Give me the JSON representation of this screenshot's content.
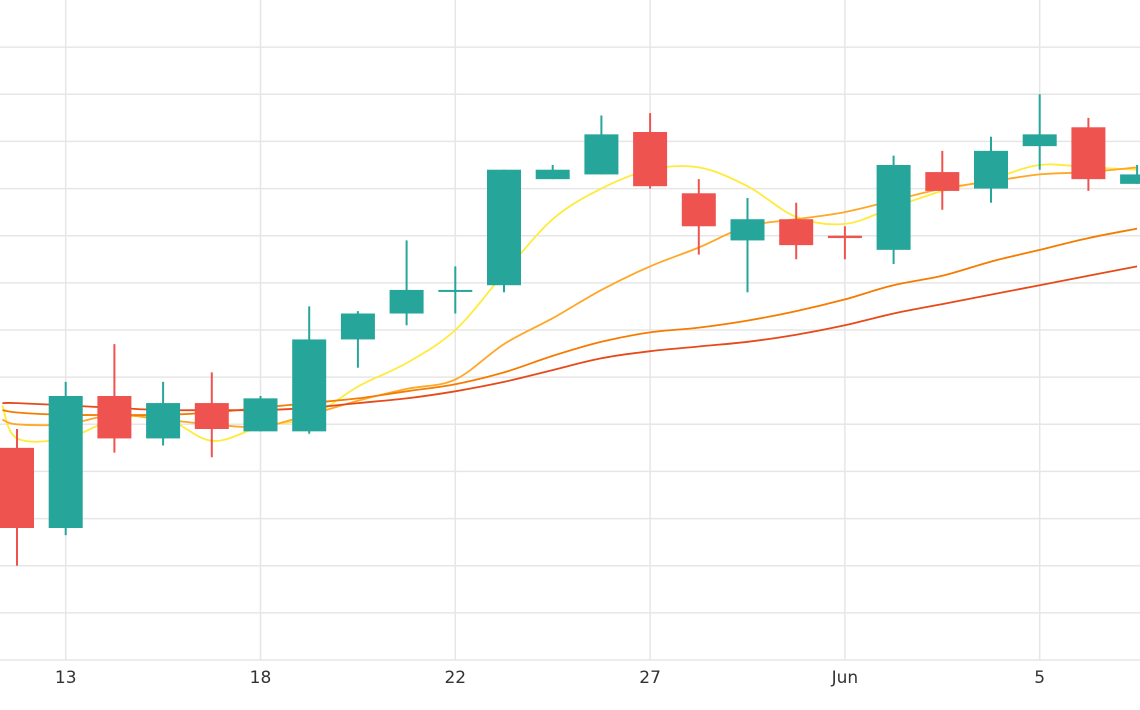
{
  "chart_data": {
    "type": "candlestick",
    "grid": true,
    "y_axis_labels_visible": false,
    "ylim": [
      0,
      14
    ],
    "x_ticks": [
      {
        "label": "13",
        "x": 1
      },
      {
        "label": "18",
        "x": 5
      },
      {
        "label": "22",
        "x": 9
      },
      {
        "label": "27",
        "x": 13
      },
      {
        "label": "Jun",
        "x": 17
      },
      {
        "label": "5",
        "x": 21
      }
    ],
    "y_gridlines": [
      1,
      2,
      3,
      4,
      5,
      6,
      7,
      8,
      9,
      10,
      11,
      12,
      13
    ],
    "colors": {
      "up": "#26a69a",
      "down": "#ef5350",
      "grid": "#e6e6e6",
      "ma_series": [
        "#ffeb3b",
        "#ffa726",
        "#f57c00",
        "#e64a19"
      ]
    },
    "candles": [
      {
        "x": 0,
        "open": 4.5,
        "high": 4.9,
        "low": 2.0,
        "close": 2.8
      },
      {
        "x": 1,
        "open": 2.8,
        "high": 5.9,
        "low": 2.65,
        "close": 5.6
      },
      {
        "x": 2,
        "open": 5.6,
        "high": 6.7,
        "low": 4.4,
        "close": 4.7
      },
      {
        "x": 3,
        "open": 4.7,
        "high": 5.9,
        "low": 4.55,
        "close": 5.45
      },
      {
        "x": 4,
        "open": 5.45,
        "high": 6.1,
        "low": 4.3,
        "close": 4.9
      },
      {
        "x": 5,
        "open": 4.85,
        "high": 5.6,
        "low": 4.85,
        "close": 5.55
      },
      {
        "x": 6,
        "open": 4.85,
        "high": 7.5,
        "low": 4.8,
        "close": 6.8
      },
      {
        "x": 7,
        "open": 6.8,
        "high": 7.4,
        "low": 6.2,
        "close": 7.35
      },
      {
        "x": 8,
        "open": 7.35,
        "high": 8.9,
        "low": 7.1,
        "close": 7.85
      },
      {
        "x": 9,
        "open": 7.85,
        "high": 8.35,
        "low": 7.35,
        "close": 7.85
      },
      {
        "x": 10,
        "open": 7.95,
        "high": 10.4,
        "low": 7.8,
        "close": 10.4
      },
      {
        "x": 11,
        "open": 10.2,
        "high": 10.5,
        "low": 10.2,
        "close": 10.4
      },
      {
        "x": 12,
        "open": 10.3,
        "high": 11.55,
        "low": 10.3,
        "close": 11.15
      },
      {
        "x": 13,
        "open": 11.2,
        "high": 11.6,
        "low": 10.0,
        "close": 10.05
      },
      {
        "x": 14,
        "open": 9.9,
        "high": 10.2,
        "low": 8.6,
        "close": 9.2
      },
      {
        "x": 15,
        "open": 8.9,
        "high": 9.8,
        "low": 7.8,
        "close": 9.35
      },
      {
        "x": 16,
        "open": 9.35,
        "high": 9.7,
        "low": 8.5,
        "close": 8.8
      },
      {
        "x": 17,
        "open": 9.0,
        "high": 9.2,
        "low": 8.5,
        "close": 8.95
      },
      {
        "x": 18,
        "open": 8.7,
        "high": 10.7,
        "low": 8.4,
        "close": 10.5
      },
      {
        "x": 19,
        "open": 10.35,
        "high": 10.8,
        "low": 9.55,
        "close": 9.95
      },
      {
        "x": 20,
        "open": 10.0,
        "high": 11.1,
        "low": 9.7,
        "close": 10.8
      },
      {
        "x": 21,
        "open": 10.9,
        "high": 12.0,
        "low": 10.4,
        "close": 11.15
      },
      {
        "x": 22,
        "open": 11.3,
        "high": 11.5,
        "low": 9.95,
        "close": 10.2
      },
      {
        "x": 23,
        "open": 10.1,
        "high": 10.5,
        "low": 10.1,
        "close": 10.3
      }
    ],
    "ma_series": [
      {
        "values": [
          [
            -0.3,
            5.4
          ],
          [
            0,
            4.7
          ],
          [
            1,
            4.7
          ],
          [
            2,
            5.1
          ],
          [
            3,
            5.15
          ],
          [
            4,
            4.65
          ],
          [
            5,
            4.95
          ],
          [
            6,
            5.15
          ],
          [
            7,
            5.8
          ],
          [
            8,
            6.3
          ],
          [
            9,
            7.0
          ],
          [
            10,
            8.2
          ],
          [
            11,
            9.35
          ],
          [
            12,
            10.0
          ],
          [
            13,
            10.4
          ],
          [
            14,
            10.45
          ],
          [
            15,
            10.05
          ],
          [
            16,
            9.4
          ],
          [
            17,
            9.25
          ],
          [
            18,
            9.6
          ],
          [
            19,
            9.95
          ],
          [
            20,
            10.2
          ],
          [
            21,
            10.5
          ],
          [
            22,
            10.45
          ],
          [
            23,
            10.4
          ]
        ]
      },
      {
        "values": [
          [
            -0.3,
            5.1
          ],
          [
            0,
            5.0
          ],
          [
            1,
            5.0
          ],
          [
            2,
            5.2
          ],
          [
            3,
            5.1
          ],
          [
            4,
            5.0
          ],
          [
            5,
            4.95
          ],
          [
            6,
            5.2
          ],
          [
            7,
            5.5
          ],
          [
            8,
            5.75
          ],
          [
            9,
            5.95
          ],
          [
            10,
            6.7
          ],
          [
            11,
            7.25
          ],
          [
            12,
            7.85
          ],
          [
            13,
            8.35
          ],
          [
            14,
            8.75
          ],
          [
            15,
            9.2
          ],
          [
            16,
            9.35
          ],
          [
            17,
            9.5
          ],
          [
            18,
            9.75
          ],
          [
            19,
            10.0
          ],
          [
            20,
            10.15
          ],
          [
            21,
            10.3
          ],
          [
            22,
            10.35
          ],
          [
            23,
            10.45
          ]
        ]
      },
      {
        "values": [
          [
            -0.3,
            5.3
          ],
          [
            0,
            5.25
          ],
          [
            1,
            5.2
          ],
          [
            2,
            5.2
          ],
          [
            3,
            5.2
          ],
          [
            4,
            5.25
          ],
          [
            5,
            5.35
          ],
          [
            6,
            5.45
          ],
          [
            7,
            5.55
          ],
          [
            8,
            5.7
          ],
          [
            9,
            5.85
          ],
          [
            10,
            6.1
          ],
          [
            11,
            6.45
          ],
          [
            12,
            6.75
          ],
          [
            13,
            6.95
          ],
          [
            14,
            7.05
          ],
          [
            15,
            7.2
          ],
          [
            16,
            7.4
          ],
          [
            17,
            7.65
          ],
          [
            18,
            7.95
          ],
          [
            19,
            8.15
          ],
          [
            20,
            8.45
          ],
          [
            21,
            8.7
          ],
          [
            22,
            8.95
          ],
          [
            23,
            9.15
          ]
        ]
      },
      {
        "values": [
          [
            -0.3,
            5.45
          ],
          [
            0,
            5.45
          ],
          [
            1,
            5.4
          ],
          [
            2,
            5.35
          ],
          [
            3,
            5.3
          ],
          [
            4,
            5.3
          ],
          [
            5,
            5.3
          ],
          [
            6,
            5.35
          ],
          [
            7,
            5.45
          ],
          [
            8,
            5.55
          ],
          [
            9,
            5.7
          ],
          [
            10,
            5.9
          ],
          [
            11,
            6.15
          ],
          [
            12,
            6.4
          ],
          [
            13,
            6.55
          ],
          [
            14,
            6.65
          ],
          [
            15,
            6.75
          ],
          [
            16,
            6.9
          ],
          [
            17,
            7.1
          ],
          [
            18,
            7.35
          ],
          [
            19,
            7.55
          ],
          [
            20,
            7.75
          ],
          [
            21,
            7.95
          ],
          [
            22,
            8.15
          ],
          [
            23,
            8.35
          ]
        ]
      }
    ]
  }
}
